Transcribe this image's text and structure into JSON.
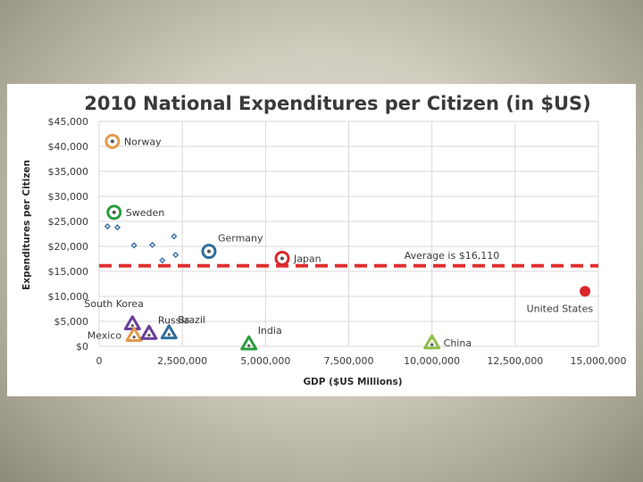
{
  "colors": {
    "slide_bg": "#cfcbbd",
    "panel_bg": "#ffffff",
    "grid": "#d9d9d9",
    "avg_line": "#e03030",
    "orange": "#e39a4b",
    "green": "#2a9d3e",
    "blue": "#2f6e9c",
    "red": "#d9262a",
    "purple": "#6a3d9a",
    "lightgreen": "#8fbf4a",
    "small_blue": "#3a6fa8"
  },
  "chart_data": {
    "type": "scatter",
    "title": "2010 National Expenditures per Citizen (in $US)",
    "xlabel": "GDP ($US Millions)",
    "ylabel": "Expenditures per Citizen",
    "xlim": [
      0,
      15000000
    ],
    "ylim": [
      0,
      45000
    ],
    "x_ticks": [
      0,
      2500000,
      5000000,
      7500000,
      10000000,
      12500000,
      15000000
    ],
    "x_tick_labels": [
      "0",
      "2,500,000",
      "5,000,000",
      "7,500,000",
      "10,000,000",
      "12,500,000",
      "15,000,000"
    ],
    "y_ticks": [
      0,
      5000,
      10000,
      15000,
      20000,
      25000,
      30000,
      35000,
      40000,
      45000
    ],
    "y_tick_labels": [
      "$0",
      "$5,000",
      "$10,000",
      "$15,000",
      "$20,000",
      "$25,000",
      "$30,000",
      "$35,000",
      "$40,000",
      "$45,000"
    ],
    "grid": true,
    "average": {
      "value": 16110,
      "label": "Average is $16,110"
    },
    "points": [
      {
        "name": "Norway",
        "x": 400000,
        "y": 41000,
        "marker": "circle-dot",
        "color": "orange",
        "label_pos": "right"
      },
      {
        "name": "Sweden",
        "x": 450000,
        "y": 26800,
        "marker": "circle-dot",
        "color": "green",
        "label_pos": "right"
      },
      {
        "name": "Germany",
        "x": 3300000,
        "y": 19000,
        "marker": "circle-dot",
        "color": "blue",
        "label_pos": "above-right"
      },
      {
        "name": "Japan",
        "x": 5500000,
        "y": 17600,
        "marker": "circle-dot",
        "color": "red",
        "label_pos": "right"
      },
      {
        "name": "United States",
        "x": 14600000,
        "y": 11000,
        "marker": "filled-circle",
        "color": "red",
        "label_pos": "below-left"
      },
      {
        "name": "South Korea",
        "x": 1000000,
        "y": 4500,
        "marker": "triangle",
        "color": "purple",
        "label_pos": "above-left"
      },
      {
        "name": "Mexico",
        "x": 1050000,
        "y": 2200,
        "marker": "triangle",
        "color": "orange",
        "label_pos": "left"
      },
      {
        "name": "Russia",
        "x": 1500000,
        "y": 2600,
        "marker": "triangle",
        "color": "purple",
        "label_pos": "above-right"
      },
      {
        "name": "Brazil",
        "x": 2100000,
        "y": 2700,
        "marker": "triangle",
        "color": "blue",
        "label_pos": "above-right"
      },
      {
        "name": "India",
        "x": 4500000,
        "y": 500,
        "marker": "triangle",
        "color": "green",
        "label_pos": "above-right"
      },
      {
        "name": "China",
        "x": 10000000,
        "y": 700,
        "marker": "triangle",
        "color": "lightgreen",
        "label_pos": "right"
      }
    ],
    "small_points": [
      {
        "x": 250000,
        "y": 24000
      },
      {
        "x": 550000,
        "y": 23800
      },
      {
        "x": 1050000,
        "y": 20200
      },
      {
        "x": 1600000,
        "y": 20300
      },
      {
        "x": 2250000,
        "y": 22000
      },
      {
        "x": 2300000,
        "y": 18300
      },
      {
        "x": 1900000,
        "y": 17200
      }
    ]
  }
}
